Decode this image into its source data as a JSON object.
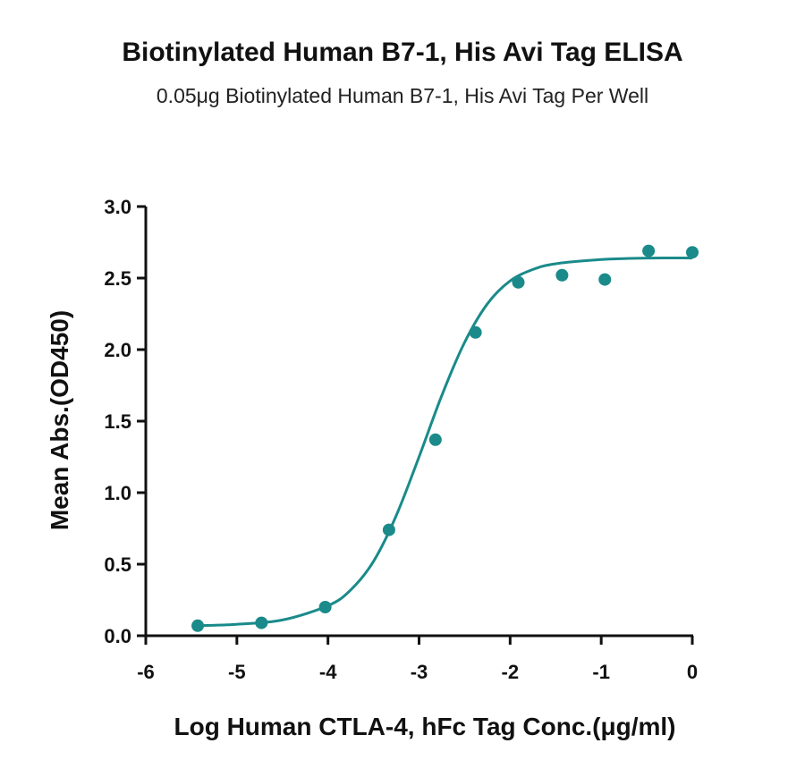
{
  "chart_data": {
    "type": "scatter",
    "title": "Biotinylated Human B7-1, His Avi Tag ELISA",
    "subtitle": "0.05μg Biotinylated Human B7-1, His Avi Tag Per Well",
    "xlabel": "Log Human CTLA-4, hFc Tag Conc.(μg/ml)",
    "ylabel": "Mean Abs.(OD450)",
    "xlim": [
      -6,
      0
    ],
    "ylim": [
      0,
      3.0
    ],
    "xticks": [
      -6,
      -5,
      -4,
      -3,
      -2,
      -1,
      0
    ],
    "xtick_labels": [
      "-6",
      "-5",
      "-4",
      "-3",
      "-2",
      "-1",
      "0"
    ],
    "yticks": [
      0,
      0.5,
      1.0,
      1.5,
      2.0,
      2.5,
      3.0
    ],
    "ytick_labels": [
      "0.0",
      "0.5",
      "1.0",
      "1.5",
      "2.0",
      "2.5",
      "3.0"
    ],
    "grid": false,
    "series": [
      {
        "color": "#1a8a8a",
        "x": [
          -5.43,
          -4.73,
          -4.03,
          -3.33,
          -2.82,
          -2.38,
          -1.91,
          -1.43,
          -0.96,
          -0.48,
          0.0
        ],
        "y": [
          0.07,
          0.09,
          0.2,
          0.74,
          1.37,
          2.12,
          2.47,
          2.52,
          2.49,
          2.69,
          2.68
        ]
      }
    ],
    "fit_curve": {
      "color": "#1a8a8a",
      "x": [
        -5.43,
        -5.0,
        -4.5,
        -4.0,
        -3.75,
        -3.5,
        -3.25,
        -3.0,
        -2.75,
        -2.5,
        -2.25,
        -2.0,
        -1.75,
        -1.5,
        -1.0,
        -0.5,
        0.0
      ],
      "y": [
        0.07,
        0.08,
        0.11,
        0.21,
        0.32,
        0.52,
        0.84,
        1.25,
        1.68,
        2.05,
        2.32,
        2.48,
        2.56,
        2.6,
        2.63,
        2.64,
        2.64
      ]
    }
  }
}
